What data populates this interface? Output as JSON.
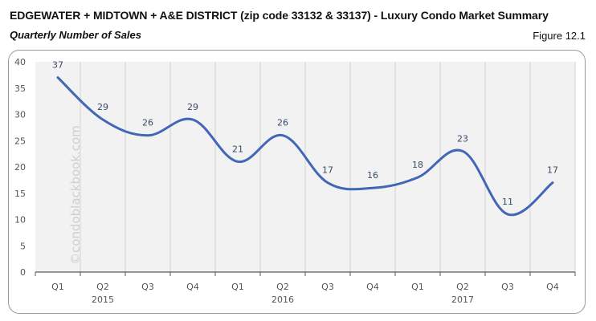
{
  "header": {
    "title": "EDGEWATER + MIDTOWN + A&E DISTRICT (zip code 33132 & 33137) - Luxury Condo Market Summary",
    "subtitle": "Quarterly Number of Sales",
    "figure_label": "Figure 12.1"
  },
  "watermark": "©condoblackbook.com",
  "colors": {
    "line": "#4266b8",
    "plot_bg": "#f2f2f2",
    "gridline": "#d4d4d4",
    "axis": "#595959",
    "label": "#3a4a66"
  },
  "chart_data": {
    "type": "line",
    "title": "Quarterly Number of Sales",
    "xlabel": "",
    "ylabel": "",
    "ylim": [
      0,
      40
    ],
    "yticks": [
      0,
      5,
      10,
      15,
      20,
      25,
      30,
      35,
      40
    ],
    "grid": "vertical",
    "legend": "none",
    "smooth": true,
    "categories": [
      "Q1 2015",
      "Q2 2015",
      "Q3 2015",
      "Q4 2015",
      "Q1 2016",
      "Q2 2016",
      "Q3 2016",
      "Q4 2016",
      "Q1 2017",
      "Q2 2017",
      "Q3 2017",
      "Q4 2017"
    ],
    "quarter_labels": [
      "Q1",
      "Q2",
      "Q3",
      "Q4",
      "Q1",
      "Q2",
      "Q3",
      "Q4",
      "Q1",
      "Q2",
      "Q3",
      "Q4"
    ],
    "year_labels": [
      {
        "label": "2015",
        "under_index": 1
      },
      {
        "label": "2016",
        "under_index": 5
      },
      {
        "label": "2017",
        "under_index": 9
      }
    ],
    "series": [
      {
        "name": "Number of Sales",
        "values": [
          37,
          29,
          26,
          29,
          21,
          26,
          17,
          16,
          18,
          23,
          11,
          17
        ]
      }
    ]
  }
}
